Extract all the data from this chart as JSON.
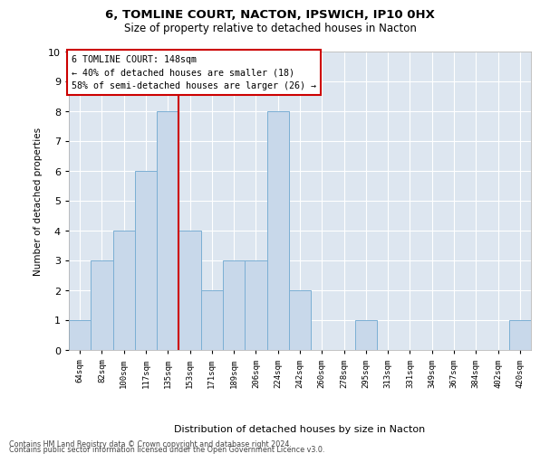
{
  "title1": "6, TOMLINE COURT, NACTON, IPSWICH, IP10 0HX",
  "title2": "Size of property relative to detached houses in Nacton",
  "xlabel": "Distribution of detached houses by size in Nacton",
  "ylabel": "Number of detached properties",
  "categories": [
    "64sqm",
    "82sqm",
    "100sqm",
    "117sqm",
    "135sqm",
    "153sqm",
    "171sqm",
    "189sqm",
    "206sqm",
    "224sqm",
    "242sqm",
    "260sqm",
    "278sqm",
    "295sqm",
    "313sqm",
    "331sqm",
    "349sqm",
    "367sqm",
    "384sqm",
    "402sqm",
    "420sqm"
  ],
  "values": [
    1,
    3,
    4,
    6,
    8,
    4,
    2,
    3,
    3,
    8,
    2,
    0,
    0,
    1,
    0,
    0,
    0,
    0,
    0,
    0,
    1
  ],
  "bar_color": "#c8d8ea",
  "bar_edge_color": "#7bafd4",
  "annotation_title": "6 TOMLINE COURT: 148sqm",
  "annotation_line1": "← 40% of detached houses are smaller (18)",
  "annotation_line2": "58% of semi-detached houses are larger (26) →",
  "annotation_box_color": "#ffffff",
  "annotation_box_edge": "#cc0000",
  "vline_color": "#cc0000",
  "vline_x": 4.5,
  "ylim": [
    0,
    10
  ],
  "yticks": [
    0,
    1,
    2,
    3,
    4,
    5,
    6,
    7,
    8,
    9,
    10
  ],
  "footer1": "Contains HM Land Registry data © Crown copyright and database right 2024.",
  "footer2": "Contains public sector information licensed under the Open Government Licence v3.0.",
  "bg_color": "#ffffff",
  "plot_bg_color": "#dde6f0"
}
